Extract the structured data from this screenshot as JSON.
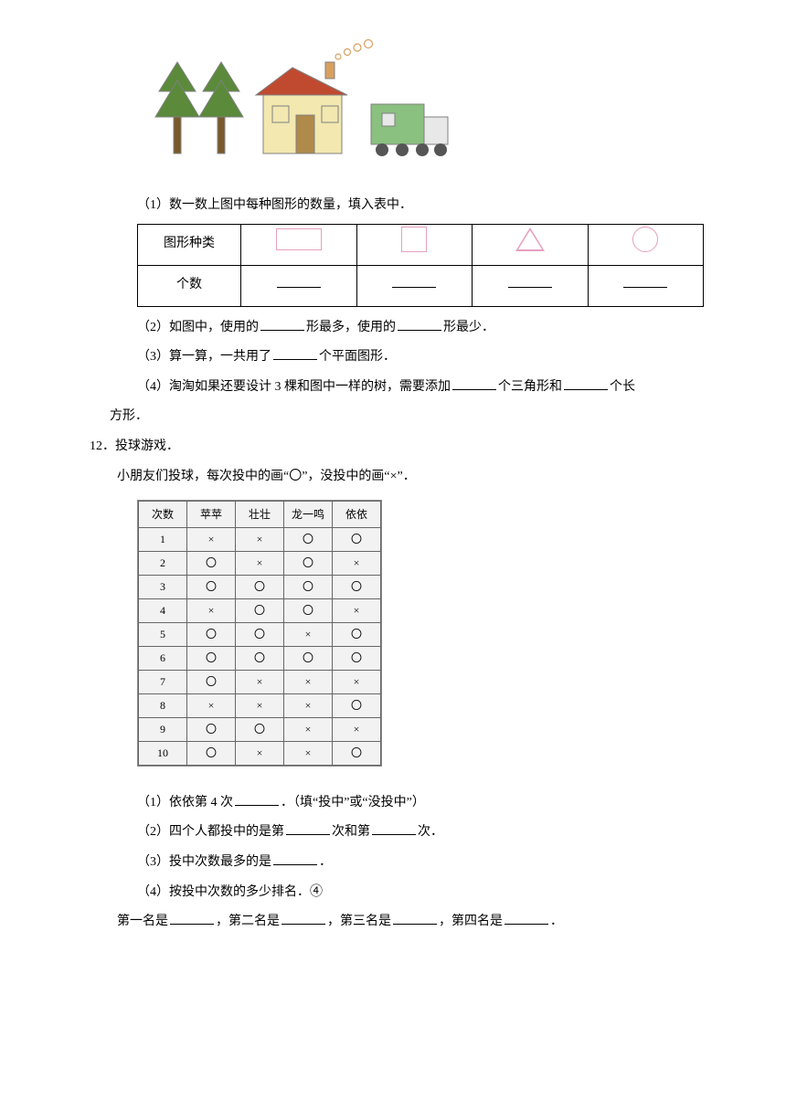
{
  "illustration": {
    "colors": {
      "tree_green": "#5a8a3a",
      "trunk": "#7a5a2a",
      "roof": "#c04a30",
      "wall": "#f2e8b0",
      "door": "#b08a4a",
      "chimney": "#d8a060",
      "truck_body": "#8ac080",
      "truck_cab": "#e8e8e8",
      "wheel": "#555555",
      "smoke": "#d8a060",
      "outline": "#808080"
    }
  },
  "q1": {
    "line1_a": "（1）数一数上图中每种图形的数量，填入表中．",
    "table": {
      "r1c1": "图形种类",
      "r2c1": "个数"
    },
    "line2_a": "（2）如图中，使用的",
    "line2_b": "形最多，使用的",
    "line2_c": "形最少．",
    "line3_a": "（3）算一算，一共用了",
    "line3_b": "个平面图形．",
    "line4_a": "（4）淘淘如果还要设计 3 棵和图中一样的树，需要添加",
    "line4_b": "个三角形和",
    "line4_c": "个长",
    "line4_d": "方形．"
  },
  "q12": {
    "num": "12．投球游戏．",
    "intro": "小朋友们投球，每次投中的画“〇”，没投中的画“×”．",
    "headers": [
      "次数",
      "苹苹",
      "壮壮",
      "龙一鸣",
      "依依"
    ],
    "marks": {
      "hit": "〇",
      "miss": "×"
    },
    "rows": [
      [
        "1",
        "miss",
        "miss",
        "hit",
        "hit"
      ],
      [
        "2",
        "hit",
        "miss",
        "hit",
        "miss"
      ],
      [
        "3",
        "hit",
        "hit",
        "hit",
        "hit"
      ],
      [
        "4",
        "miss",
        "hit",
        "hit",
        "miss"
      ],
      [
        "5",
        "hit",
        "hit",
        "miss",
        "hit"
      ],
      [
        "6",
        "hit",
        "hit",
        "hit",
        "hit"
      ],
      [
        "7",
        "hit",
        "miss",
        "miss",
        "miss"
      ],
      [
        "8",
        "miss",
        "miss",
        "miss",
        "hit"
      ],
      [
        "9",
        "hit",
        "hit",
        "miss",
        "miss"
      ],
      [
        "10",
        "hit",
        "miss",
        "miss",
        "hit"
      ]
    ],
    "q1_a": "（1）依依第 4 次",
    "q1_b": "．（填“投中”或“没投中”）",
    "q2_a": "（2）四个人都投中的是第",
    "q2_b": "次和第",
    "q2_c": "次．",
    "q3_a": "（3）投中次数最多的是",
    "q3_b": "．",
    "q4": "（4）按投中次数的多少排名．④",
    "rank_a": "第一名是",
    "rank_b": "，第二名是",
    "rank_c": "，第三名是",
    "rank_d": "，第四名是",
    "rank_e": "．"
  }
}
